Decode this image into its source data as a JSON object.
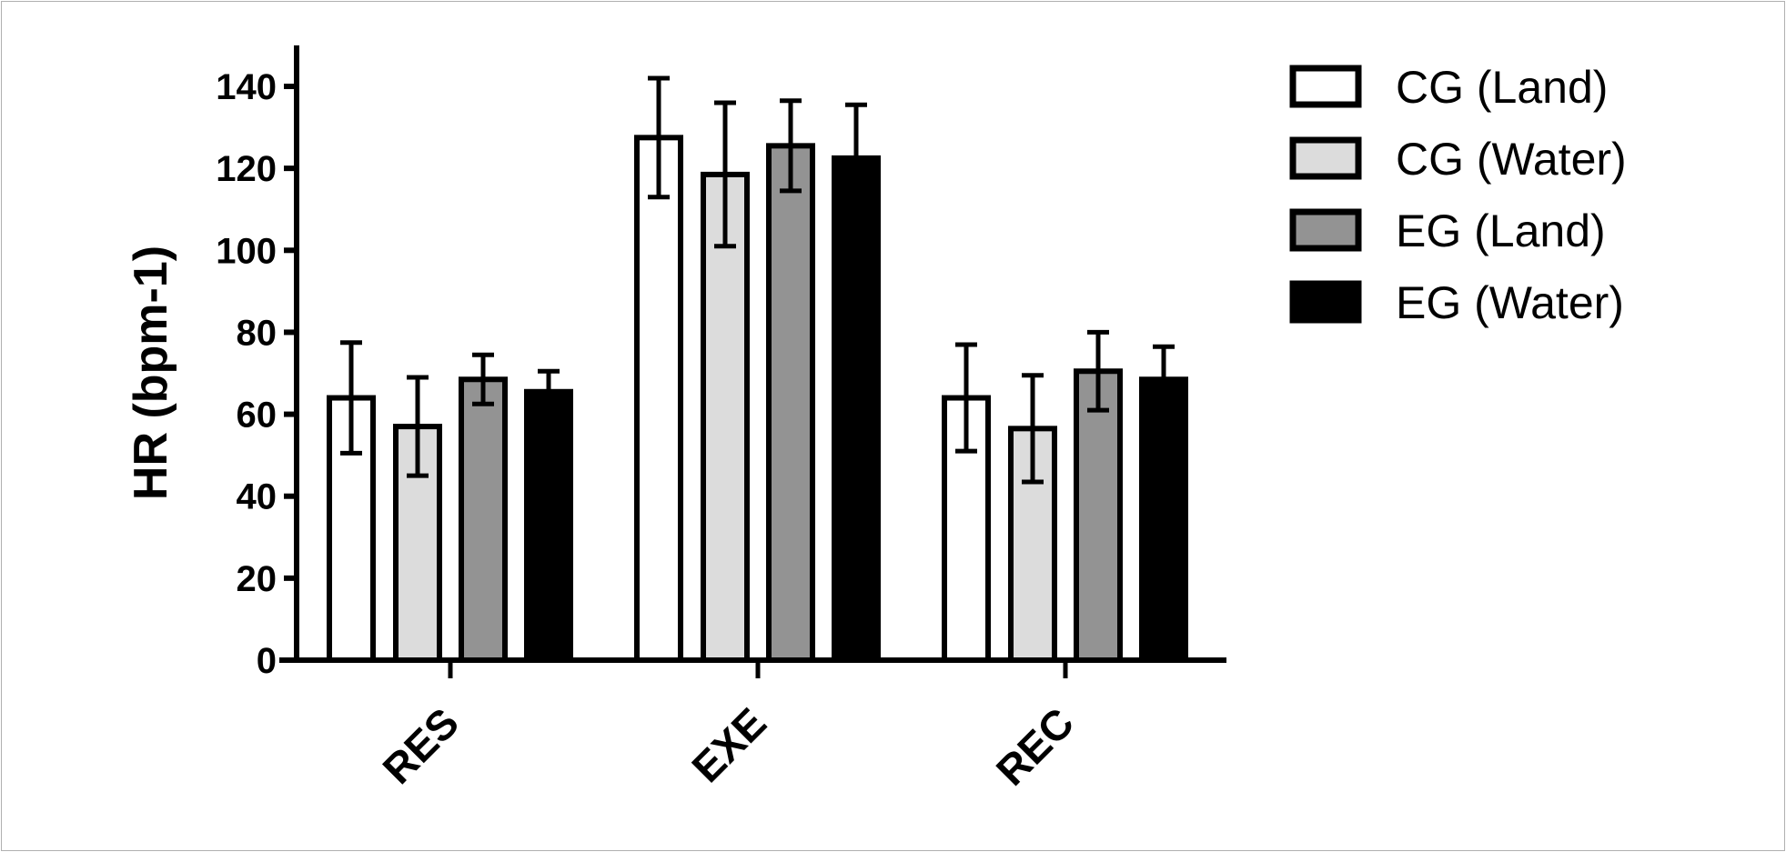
{
  "chart_data": {
    "type": "bar",
    "title": "",
    "xlabel": "",
    "ylabel": "HR (bpm-1)",
    "ylim": [
      0,
      150
    ],
    "yticks": [
      0,
      20,
      40,
      60,
      80,
      100,
      120,
      140
    ],
    "categories": [
      "RES",
      "EXE",
      "REC"
    ],
    "legend_position": "top-right",
    "grid": false,
    "series": [
      {
        "name": "CG (Land)",
        "fill": "#ffffff",
        "values": [
          64,
          127.5,
          64
        ],
        "errors": [
          13.5,
          14.5,
          13
        ]
      },
      {
        "name": "CG (Water)",
        "fill": "#dcdcdc",
        "values": [
          57,
          118.5,
          56.5
        ],
        "errors": [
          12,
          17.5,
          13
        ]
      },
      {
        "name": "EG (Land)",
        "fill": "#939393",
        "values": [
          68.5,
          125.5,
          70.5
        ],
        "errors": [
          6,
          11,
          9.5
        ]
      },
      {
        "name": "EG (Water)",
        "fill": "#000000",
        "values": [
          65.5,
          122.5,
          68.5
        ],
        "errors": [
          5,
          13,
          8
        ]
      }
    ]
  }
}
